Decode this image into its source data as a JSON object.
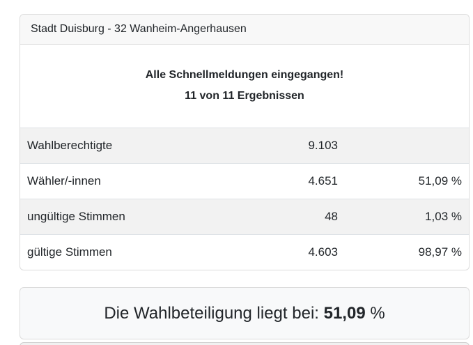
{
  "card": {
    "title": "Stadt Duisburg - 32 Wanheim-Angerhausen",
    "status": {
      "line1": "Alle Schnellmeldungen eingegangen!",
      "line2": "11 von 11 Ergebnissen"
    },
    "table": {
      "rows": [
        {
          "label": "Wahlberechtigte",
          "count": "9.103",
          "percent": ""
        },
        {
          "label": "Wähler/-innen",
          "count": "4.651",
          "percent": "51,09 %"
        },
        {
          "label": "ungültige Stimmen",
          "count": "48",
          "percent": "1,03 %"
        },
        {
          "label": "gültige Stimmen",
          "count": "4.603",
          "percent": "98,97 %"
        }
      ]
    }
  },
  "turnout": {
    "prefix": "Die Wahlbeteiligung liegt bei: ",
    "value": "51,09",
    "suffix": " %"
  },
  "colors": {
    "card_border": "#dcdcdc",
    "header_bg": "#f8f8f8",
    "stripe_bg": "#f2f2f2",
    "row_border": "#dee2e6",
    "turnout_bg": "#f8f9fa",
    "text": "#212529"
  }
}
